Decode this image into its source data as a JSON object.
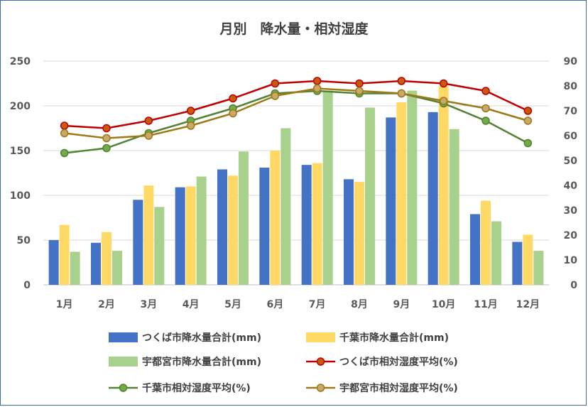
{
  "chart_data": {
    "type": "bar+line",
    "title": "月別　降水量・相対湿度",
    "categories": [
      "1月",
      "2月",
      "3月",
      "4月",
      "5月",
      "6月",
      "7月",
      "8月",
      "9月",
      "10月",
      "11月",
      "12月"
    ],
    "y_left": {
      "min": 0,
      "max": 250,
      "ticks": [
        "0",
        "50",
        "100",
        "150",
        "200",
        "250"
      ]
    },
    "y_right": {
      "min": 0,
      "max": 90,
      "ticks": [
        "0",
        "10",
        "20",
        "30",
        "40",
        "50",
        "60",
        "70",
        "80",
        "90"
      ]
    },
    "bar_series": [
      {
        "name": "つくば市降水量合計(mm)",
        "color": "#4472c4",
        "values": [
          50,
          47,
          95,
          109,
          129,
          131,
          134,
          118,
          187,
          193,
          79,
          48
        ]
      },
      {
        "name": "千葉市降水量合計(mm)",
        "color": "#ffd966",
        "values": [
          67,
          59,
          111,
          110,
          122,
          150,
          136,
          115,
          204,
          222,
          94,
          56
        ]
      },
      {
        "name": "宇都宮市降水量合計(mm)",
        "color": "#a9d18e",
        "values": [
          37,
          38,
          87,
          121,
          149,
          175,
          217,
          198,
          217,
          174,
          71,
          38
        ]
      }
    ],
    "line_series": [
      {
        "name": "つくば市相対湿度平均(%)",
        "color": "#c00000",
        "marker": "#c55a11",
        "values": [
          64,
          63,
          66,
          70,
          75,
          81,
          82,
          81,
          82,
          81,
          78,
          70
        ]
      },
      {
        "name": "千葉市相対湿度平均(%)",
        "color": "#548235",
        "marker": "#70ad47",
        "values": [
          53,
          55,
          61,
          66,
          71,
          77,
          78,
          77,
          77,
          73,
          66,
          57
        ]
      },
      {
        "name": "宇都宮市相対湿度平均(%)",
        "color": "#9c7a17",
        "marker": "#c9a868",
        "values": [
          61,
          59,
          60,
          64,
          69,
          76,
          79,
          78,
          77,
          74,
          71,
          66
        ]
      }
    ],
    "legend_position": "bottom"
  }
}
